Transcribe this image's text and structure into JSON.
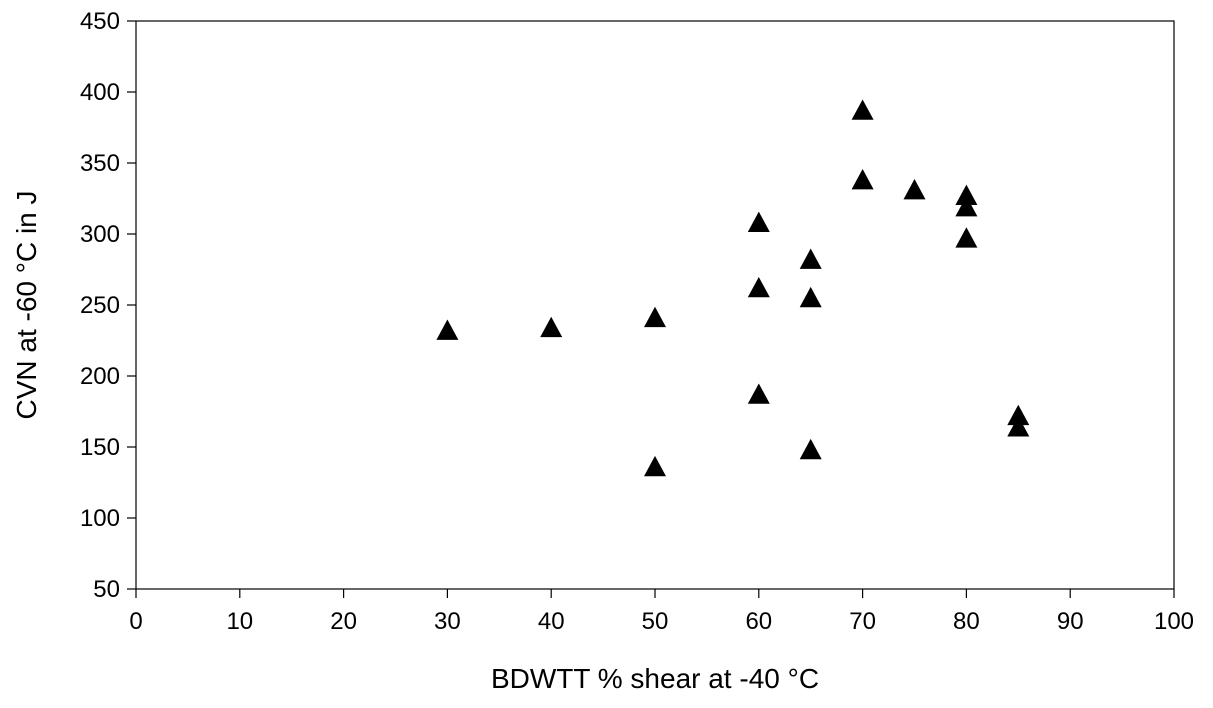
{
  "chart_data": {
    "type": "scatter",
    "title": "",
    "xlabel": "BDWTT % shear at -40 °C",
    "ylabel": "CVN at -60 °C in J",
    "xlim": [
      0,
      100
    ],
    "ylim": [
      50,
      450
    ],
    "x_ticks": [
      0,
      10,
      20,
      30,
      40,
      50,
      60,
      70,
      80,
      90,
      100
    ],
    "y_ticks": [
      50,
      100,
      150,
      200,
      250,
      300,
      350,
      400,
      450
    ],
    "grid": false,
    "legend": "none",
    "marker": "triangle",
    "marker_color": "#000000",
    "series": [
      {
        "points": [
          {
            "x": 30,
            "y": 232
          },
          {
            "x": 40,
            "y": 234
          },
          {
            "x": 50,
            "y": 241
          },
          {
            "x": 50,
            "y": 136
          },
          {
            "x": 60,
            "y": 308
          },
          {
            "x": 60,
            "y": 262
          },
          {
            "x": 60,
            "y": 187
          },
          {
            "x": 65,
            "y": 282
          },
          {
            "x": 65,
            "y": 255
          },
          {
            "x": 65,
            "y": 148
          },
          {
            "x": 70,
            "y": 387
          },
          {
            "x": 70,
            "y": 338
          },
          {
            "x": 75,
            "y": 331
          },
          {
            "x": 80,
            "y": 327
          },
          {
            "x": 80,
            "y": 319
          },
          {
            "x": 80,
            "y": 297
          },
          {
            "x": 85,
            "y": 172
          },
          {
            "x": 85,
            "y": 164
          }
        ]
      }
    ]
  }
}
